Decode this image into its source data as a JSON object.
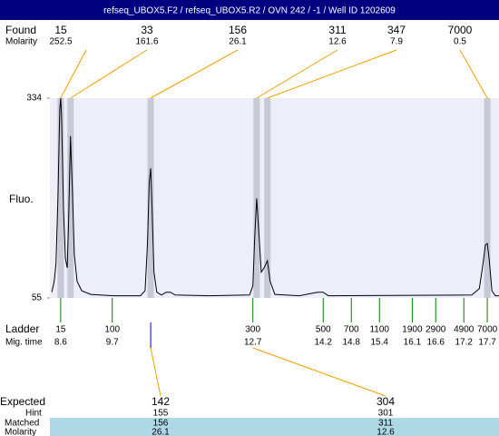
{
  "title": "refseq_UBOX5.F2 / refseq_UBOX5.R2 / OVN 242 / -1 / Well ID 1202609",
  "chart_data": {
    "type": "line",
    "y_label": "Fluo.",
    "ylim": [
      55,
      334
    ],
    "yticks": [
      55,
      334
    ],
    "xlim": [
      8.37,
      17.95
    ],
    "color": "#000000",
    "x": [
      8.41,
      8.46,
      8.5,
      8.54,
      8.58,
      8.6,
      8.62,
      8.66,
      8.7,
      8.74,
      8.77,
      8.81,
      8.85,
      8.89,
      8.95,
      9.05,
      9.24,
      9.72,
      10.3,
      10.4,
      10.45,
      10.49,
      10.52,
      10.55,
      10.59,
      10.65,
      10.75,
      10.85,
      10.94,
      11.04,
      11.76,
      12.63,
      12.7,
      12.74,
      12.78,
      12.82,
      12.88,
      12.94,
      13.01,
      13.07,
      13.17,
      13.69,
      14.08,
      14.2,
      14.31,
      17.37,
      17.53,
      17.61,
      17.66,
      17.7,
      17.74,
      17.8,
      17.87,
      17.95
    ],
    "values": [
      63,
      78,
      103,
      192,
      319,
      334,
      306,
      179,
      110,
      97,
      167,
      281,
      205,
      116,
      78,
      65,
      60,
      58,
      58,
      65,
      129,
      217,
      236,
      179,
      91,
      63,
      59,
      63,
      63,
      59,
      58,
      59,
      72,
      141,
      194,
      154,
      91,
      97,
      107,
      78,
      60,
      58,
      63,
      63,
      58,
      59,
      68,
      103,
      129,
      131,
      110,
      65,
      58,
      58
    ]
  },
  "found": {
    "label": "Found",
    "molarity_label": "Molarity",
    "sizes": [
      15,
      33,
      156,
      311,
      347,
      7000
    ],
    "molarity": [
      252.5,
      161.6,
      26.1,
      12.6,
      7.9,
      0.5
    ],
    "peak_times": [
      8.6,
      8.81,
      10.52,
      12.78,
      13.01,
      17.7
    ]
  },
  "ladder": {
    "label": "Ladder",
    "time_label": "Mig. time",
    "sizes": [
      15,
      100,
      300,
      500,
      700,
      1100,
      1900,
      2900,
      4900,
      7000
    ],
    "times": [
      8.6,
      9.7,
      12.7,
      14.2,
      14.8,
      15.4,
      16.1,
      16.6,
      17.2,
      17.7
    ]
  },
  "expected": {
    "label": "Expected",
    "hint_label": "Hint",
    "matched_label": "Matched",
    "molarity_label": "Molarity",
    "columns": [
      {
        "expected": 142,
        "hint": 155,
        "matched": 156,
        "molarity": 26.1
      },
      {
        "expected": 304,
        "hint": 301,
        "matched": 311,
        "molarity": 12.6
      }
    ]
  }
}
